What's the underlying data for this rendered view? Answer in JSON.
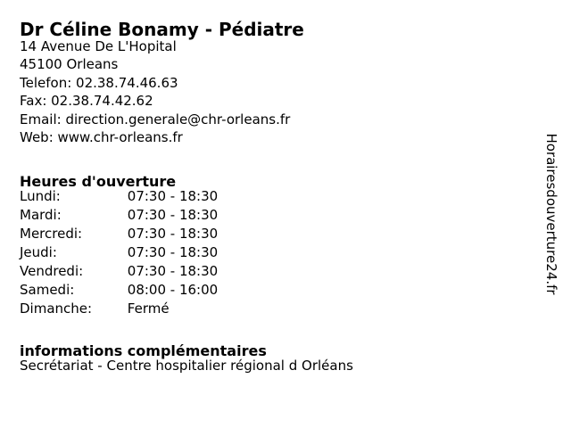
{
  "header": {
    "title": "Dr Céline Bonamy - Pédiatre"
  },
  "contact": {
    "lines": [
      {
        "text": "14 Avenue De L'Hopital"
      },
      {
        "text": "45100 Orleans"
      },
      {
        "text": "Telefon: 02.38.74.46.63"
      },
      {
        "text": "Fax: 02.38.74.42.62"
      },
      {
        "text": "Email: direction.generale@chr-orleans.fr"
      },
      {
        "text": "Web: www.chr-orleans.fr"
      }
    ]
  },
  "hours": {
    "heading": "Heures d'ouverture",
    "rows": [
      {
        "day": "Lundi:",
        "time": "07:30 - 18:30"
      },
      {
        "day": "Mardi:",
        "time": "07:30 - 18:30"
      },
      {
        "day": "Mercredi:",
        "time": "07:30 - 18:30"
      },
      {
        "day": "Jeudi:",
        "time": "07:30 - 18:30"
      },
      {
        "day": "Vendredi:",
        "time": "07:30 - 18:30"
      },
      {
        "day": "Samedi:",
        "time": "08:00 - 16:00"
      },
      {
        "day": "Dimanche:",
        "time": "Fermé"
      }
    ]
  },
  "extra_info": {
    "heading": "informations complémentaires",
    "text": "Secrétariat - Centre hospitalier régional d Orléans"
  },
  "watermark": {
    "text": "Horairesdouverture24.fr"
  },
  "colors": {
    "background": "#ffffff",
    "text": "#000000"
  }
}
